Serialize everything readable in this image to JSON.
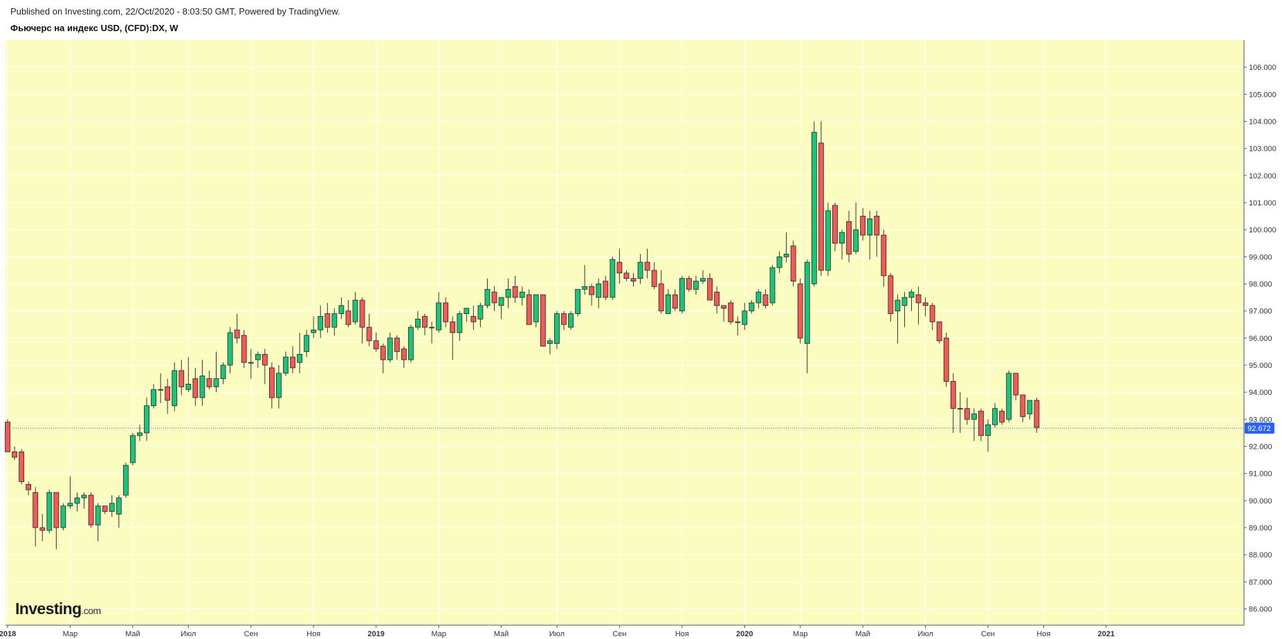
{
  "header": {
    "published": "Published on Investing.com, 22/Oct/2020 - 8:03:50 GMT, Powered by TradingView.",
    "title": "Фьючерс на индекс USD, (CFD):DX, W"
  },
  "logo": {
    "text": "Investing",
    "suffix": ".com"
  },
  "colors": {
    "background": "#fafcc0",
    "grid": "#ffffff",
    "up": "#1ec27a",
    "down": "#ef5a5a",
    "wick": "#333333",
    "price_line": "#2962ff",
    "price_label_bg": "#2962ff"
  },
  "chart_data": {
    "type": "candlestick",
    "title": "Фьючерс на индекс USD, (CFD):DX, W",
    "interval": "W",
    "last_price": "92.672",
    "y_range": [
      85.4,
      107.0
    ],
    "y_ticks": [
      "86.000",
      "87.000",
      "88.000",
      "89.000",
      "90.000",
      "91.000",
      "92.000",
      "93.000",
      "94.000",
      "95.000",
      "96.000",
      "97.000",
      "98.000",
      "99.000",
      "100.000",
      "101.000",
      "102.000",
      "103.000",
      "104.000",
      "105.000",
      "106.000"
    ],
    "x_labels": [
      {
        "label": "2018",
        "week": 1,
        "bold": true
      },
      {
        "label": "Мар",
        "week": 10,
        "bold": false
      },
      {
        "label": "Май",
        "week": 19,
        "bold": false
      },
      {
        "label": "Июл",
        "week": 27,
        "bold": false
      },
      {
        "label": "Сен",
        "week": 36,
        "bold": false
      },
      {
        "label": "Ноя",
        "week": 45,
        "bold": false
      },
      {
        "label": "2019",
        "week": 54,
        "bold": true
      },
      {
        "label": "Мар",
        "week": 63,
        "bold": false
      },
      {
        "label": "Май",
        "week": 72,
        "bold": false
      },
      {
        "label": "Июл",
        "week": 80,
        "bold": false
      },
      {
        "label": "Сен",
        "week": 89,
        "bold": false
      },
      {
        "label": "Ноя",
        "week": 98,
        "bold": false
      },
      {
        "label": "2020",
        "week": 107,
        "bold": true
      },
      {
        "label": "Мар",
        "week": 115,
        "bold": false
      },
      {
        "label": "Май",
        "week": 124,
        "bold": false
      },
      {
        "label": "Июл",
        "week": 133,
        "bold": false
      },
      {
        "label": "Сен",
        "week": 142,
        "bold": false
      },
      {
        "label": "Ноя",
        "week": 150,
        "bold": false
      },
      {
        "label": "2021",
        "week": 159,
        "bold": true
      }
    ],
    "candles": [
      [
        92.9,
        93.0,
        91.8,
        91.8
      ],
      [
        91.8,
        92.0,
        91.5,
        91.6
      ],
      [
        91.8,
        91.9,
        90.6,
        90.7
      ],
      [
        90.6,
        90.7,
        90.2,
        90.4
      ],
      [
        90.3,
        90.5,
        88.3,
        89.0
      ],
      [
        89.0,
        89.5,
        88.5,
        88.9
      ],
      [
        88.9,
        90.4,
        88.8,
        90.3
      ],
      [
        90.3,
        90.3,
        88.2,
        89.0
      ],
      [
        89.0,
        89.9,
        88.9,
        89.8
      ],
      [
        89.8,
        90.9,
        89.7,
        89.9
      ],
      [
        89.9,
        90.3,
        89.6,
        90.1
      ],
      [
        90.1,
        90.3,
        89.7,
        90.2
      ],
      [
        90.2,
        90.3,
        89.0,
        89.1
      ],
      [
        89.1,
        89.9,
        88.5,
        89.8
      ],
      [
        89.8,
        89.8,
        89.5,
        89.6
      ],
      [
        89.6,
        90.2,
        89.4,
        89.9
      ],
      [
        89.5,
        90.2,
        89.0,
        90.1
      ],
      [
        90.2,
        91.4,
        90.1,
        91.3
      ],
      [
        91.4,
        92.5,
        91.3,
        92.4
      ],
      [
        92.4,
        92.8,
        92.2,
        92.5
      ],
      [
        92.5,
        93.8,
        92.2,
        93.5
      ],
      [
        93.5,
        94.3,
        93.4,
        94.1
      ],
      [
        94.1,
        94.7,
        93.6,
        94.1
      ],
      [
        94.2,
        94.5,
        93.2,
        93.7
      ],
      [
        93.5,
        95.1,
        93.3,
        94.8
      ],
      [
        94.8,
        95.2,
        93.9,
        94.2
      ],
      [
        94.1,
        95.3,
        94.0,
        94.3
      ],
      [
        94.5,
        94.9,
        93.5,
        93.8
      ],
      [
        93.8,
        95.2,
        93.5,
        94.6
      ],
      [
        94.5,
        94.8,
        94.1,
        94.2
      ],
      [
        94.2,
        95.5,
        94.0,
        94.5
      ],
      [
        94.5,
        95.1,
        94.3,
        95.0
      ],
      [
        95.0,
        96.4,
        94.7,
        96.2
      ],
      [
        96.3,
        96.9,
        95.8,
        96.0
      ],
      [
        96.1,
        96.3,
        94.9,
        95.1
      ],
      [
        95.1,
        95.6,
        94.5,
        95.1
      ],
      [
        95.2,
        95.5,
        94.9,
        95.4
      ],
      [
        95.4,
        95.6,
        94.3,
        95.0
      ],
      [
        94.9,
        95.1,
        93.4,
        93.8
      ],
      [
        93.8,
        95.0,
        93.4,
        94.7
      ],
      [
        94.7,
        95.5,
        94.6,
        95.3
      ],
      [
        95.3,
        95.7,
        94.7,
        94.9
      ],
      [
        95.1,
        96.2,
        94.7,
        95.4
      ],
      [
        95.5,
        96.3,
        95.3,
        96.1
      ],
      [
        96.2,
        96.8,
        96.0,
        96.3
      ],
      [
        96.3,
        97.2,
        96.0,
        96.8
      ],
      [
        96.9,
        97.3,
        96.2,
        96.4
      ],
      [
        96.4,
        97.1,
        96.1,
        96.9
      ],
      [
        96.9,
        97.5,
        96.7,
        97.2
      ],
      [
        97.0,
        97.4,
        96.4,
        96.5
      ],
      [
        96.6,
        97.7,
        96.5,
        97.4
      ],
      [
        97.4,
        97.5,
        95.8,
        96.4
      ],
      [
        96.4,
        96.9,
        95.7,
        95.9
      ],
      [
        95.9,
        96.2,
        95.5,
        95.6
      ],
      [
        95.7,
        95.8,
        94.7,
        95.2
      ],
      [
        95.2,
        96.2,
        95.1,
        96.0
      ],
      [
        96.0,
        96.1,
        95.2,
        95.5
      ],
      [
        95.6,
        95.7,
        94.9,
        95.2
      ],
      [
        95.2,
        96.5,
        95.1,
        96.4
      ],
      [
        96.4,
        97.0,
        96.3,
        96.7
      ],
      [
        96.8,
        96.9,
        96.1,
        96.4
      ],
      [
        96.4,
        96.6,
        95.8,
        96.4
      ],
      [
        96.3,
        97.7,
        96.2,
        97.3
      ],
      [
        97.3,
        97.5,
        96.4,
        96.6
      ],
      [
        96.6,
        96.8,
        95.2,
        96.2
      ],
      [
        96.2,
        97.0,
        95.9,
        96.9
      ],
      [
        96.9,
        97.1,
        96.6,
        97.1
      ],
      [
        96.8,
        97.2,
        96.3,
        96.6
      ],
      [
        96.7,
        97.3,
        96.4,
        97.2
      ],
      [
        97.2,
        98.2,
        97.1,
        97.8
      ],
      [
        97.7,
        97.9,
        97.0,
        97.3
      ],
      [
        97.2,
        97.4,
        96.7,
        97.5
      ],
      [
        97.5,
        98.2,
        97.1,
        97.8
      ],
      [
        97.9,
        98.3,
        97.3,
        97.5
      ],
      [
        97.5,
        97.9,
        97.2,
        97.7
      ],
      [
        97.6,
        97.8,
        96.5,
        96.5
      ],
      [
        96.6,
        97.6,
        96.4,
        97.6
      ],
      [
        97.6,
        97.6,
        95.7,
        95.7
      ],
      [
        95.8,
        96.0,
        95.4,
        95.9
      ],
      [
        95.8,
        97.0,
        95.6,
        96.9
      ],
      [
        96.9,
        97.0,
        96.3,
        96.5
      ],
      [
        96.4,
        97.0,
        96.3,
        96.9
      ],
      [
        96.9,
        97.8,
        96.8,
        97.8
      ],
      [
        97.8,
        98.7,
        97.6,
        97.9
      ],
      [
        97.9,
        98.0,
        97.2,
        97.6
      ],
      [
        97.5,
        98.2,
        97.1,
        98.0
      ],
      [
        98.1,
        98.3,
        97.4,
        97.5
      ],
      [
        97.5,
        99.0,
        97.4,
        98.9
      ],
      [
        98.8,
        99.3,
        98.0,
        98.4
      ],
      [
        98.4,
        98.5,
        98.1,
        98.2
      ],
      [
        98.2,
        98.4,
        97.9,
        98.1
      ],
      [
        98.2,
        99.1,
        98.0,
        98.8
      ],
      [
        98.8,
        99.3,
        98.2,
        98.5
      ],
      [
        98.5,
        98.8,
        97.8,
        97.9
      ],
      [
        98.0,
        98.5,
        96.9,
        97.0
      ],
      [
        96.9,
        97.8,
        96.9,
        97.6
      ],
      [
        97.6,
        97.8,
        97.0,
        97.1
      ],
      [
        97.0,
        98.3,
        96.9,
        98.2
      ],
      [
        98.2,
        98.3,
        97.7,
        97.8
      ],
      [
        97.8,
        98.3,
        97.6,
        98.1
      ],
      [
        98.1,
        98.5,
        98.0,
        98.2
      ],
      [
        98.2,
        98.4,
        97.4,
        97.4
      ],
      [
        97.7,
        97.9,
        96.9,
        97.2
      ],
      [
        97.2,
        97.2,
        96.6,
        97.1
      ],
      [
        97.3,
        97.4,
        96.5,
        96.6
      ],
      [
        96.6,
        96.8,
        96.1,
        96.6
      ],
      [
        96.5,
        97.3,
        96.3,
        97.0
      ],
      [
        97.0,
        97.4,
        96.9,
        97.3
      ],
      [
        97.3,
        97.8,
        97.1,
        97.7
      ],
      [
        97.6,
        97.8,
        97.1,
        97.2
      ],
      [
        97.3,
        98.7,
        97.2,
        98.6
      ],
      [
        98.6,
        99.2,
        98.4,
        99.0
      ],
      [
        99.0,
        99.9,
        98.8,
        99.1
      ],
      [
        99.4,
        99.6,
        97.9,
        98.1
      ],
      [
        98.0,
        98.2,
        95.8,
        96.0
      ],
      [
        95.8,
        98.9,
        94.7,
        98.8
      ],
      [
        98.0,
        104.0,
        97.9,
        103.6
      ],
      [
        103.2,
        104.0,
        98.3,
        98.5
      ],
      [
        98.5,
        101.0,
        98.3,
        100.7
      ],
      [
        100.9,
        101.0,
        99.2,
        99.5
      ],
      [
        99.5,
        100.0,
        98.9,
        99.9
      ],
      [
        100.3,
        100.7,
        98.8,
        99.1
      ],
      [
        99.2,
        101.0,
        99.1,
        100.0
      ],
      [
        100.5,
        100.8,
        99.6,
        99.8
      ],
      [
        99.8,
        100.7,
        98.9,
        100.4
      ],
      [
        100.5,
        100.7,
        99.0,
        99.8
      ],
      [
        99.8,
        100.0,
        97.9,
        98.3
      ],
      [
        98.3,
        98.4,
        96.6,
        96.9
      ],
      [
        97.0,
        97.6,
        95.8,
        97.4
      ],
      [
        97.2,
        97.7,
        96.4,
        97.5
      ],
      [
        97.5,
        97.8,
        97.0,
        97.7
      ],
      [
        97.6,
        97.9,
        96.5,
        97.3
      ],
      [
        97.3,
        97.5,
        96.8,
        97.2
      ],
      [
        97.2,
        97.3,
        96.3,
        96.6
      ],
      [
        96.6,
        96.6,
        95.8,
        95.9
      ],
      [
        96.0,
        96.2,
        94.2,
        94.4
      ],
      [
        94.4,
        94.7,
        92.5,
        93.4
      ],
      [
        93.4,
        94.0,
        92.5,
        93.4
      ],
      [
        93.4,
        93.8,
        92.8,
        93.0
      ],
      [
        93.0,
        93.4,
        92.2,
        93.2
      ],
      [
        93.3,
        93.4,
        92.2,
        92.4
      ],
      [
        92.4,
        93.0,
        91.8,
        92.8
      ],
      [
        92.8,
        93.6,
        92.7,
        93.4
      ],
      [
        93.3,
        93.4,
        92.8,
        92.9
      ],
      [
        93.0,
        94.8,
        92.9,
        94.7
      ],
      [
        94.7,
        94.7,
        93.7,
        93.9
      ],
      [
        93.9,
        93.9,
        92.9,
        93.1
      ],
      [
        93.2,
        93.7,
        93.0,
        93.7
      ],
      [
        93.7,
        93.8,
        92.5,
        92.7
      ]
    ]
  }
}
